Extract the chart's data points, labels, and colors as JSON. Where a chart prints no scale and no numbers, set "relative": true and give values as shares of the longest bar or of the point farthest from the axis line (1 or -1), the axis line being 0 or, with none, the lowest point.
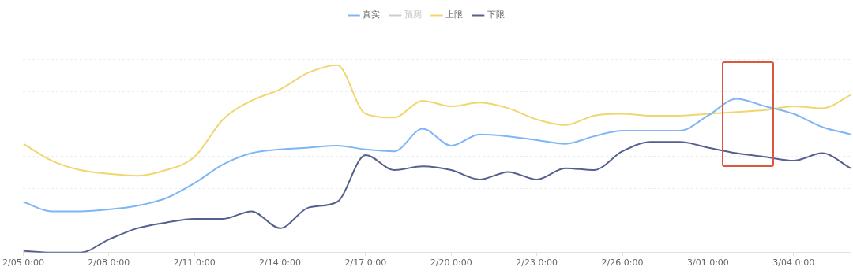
{
  "chart_data": {
    "type": "line",
    "relative": true,
    "legend": "top",
    "grid": "y",
    "marker": "none",
    "line_style": "solid",
    "x": [
      "--02-05",
      "--02-06",
      "--02-07",
      "--02-08",
      "--02-09",
      "--02-10",
      "--02-11",
      "--02-12",
      "--02-13",
      "--02-14",
      "--02-15",
      "--02-16",
      "--02-17",
      "--02-18",
      "--02-19",
      "--02-20",
      "--02-21",
      "--02-22",
      "--02-23",
      "--02-24",
      "--02-25",
      "--02-26",
      "--02-27",
      "--02-28",
      "--03-01",
      "--03-02",
      "--03-03",
      "--03-04",
      "--03-05",
      "--03-06"
    ],
    "xlim": [
      "--02-05",
      "--03-06"
    ],
    "xticks": [
      {
        "value": "--02-05",
        "label": "2/05 0:00"
      },
      {
        "value": "--02-08",
        "label": "2/08 0:00"
      },
      {
        "value": "--02-11",
        "label": "2/11 0:00"
      },
      {
        "value": "--02-14",
        "label": "2/14 0:00"
      },
      {
        "value": "--02-17",
        "label": "2/17 0:00"
      },
      {
        "value": "--02-20",
        "label": "2/20 0:00"
      },
      {
        "value": "--02-23",
        "label": "2/23 0:00"
      },
      {
        "value": "--02-26",
        "label": "2/26 0:00"
      },
      {
        "value": "--03-01",
        "label": "3/01 0:00"
      },
      {
        "value": "--03-04",
        "label": "3/04 0:00"
      }
    ],
    "series": [
      {
        "name": "真实",
        "color": "#7eb6f5",
        "values": [
          0.27,
          0.22,
          0.22,
          0.23,
          0.25,
          0.29,
          0.37,
          0.47,
          0.53,
          0.55,
          0.56,
          0.57,
          0.55,
          0.54,
          0.66,
          0.57,
          0.63,
          0.62,
          0.6,
          0.58,
          0.62,
          0.65,
          0.65,
          0.65,
          0.73,
          0.82,
          0.78,
          0.74,
          0.67,
          0.63
        ]
      },
      {
        "name": "预测",
        "color": "#cccccc",
        "values": [
          null,
          null,
          null,
          null,
          null,
          null,
          null,
          null,
          null,
          null,
          null,
          null,
          null,
          null,
          null,
          null,
          null,
          null,
          null,
          null,
          null,
          null,
          null,
          null,
          null,
          null,
          null,
          null,
          null,
          null
        ]
      },
      {
        "name": "上限",
        "color": "#f0d670",
        "values": [
          0.58,
          0.49,
          0.44,
          0.42,
          0.41,
          0.44,
          0.51,
          0.71,
          0.81,
          0.87,
          0.96,
          1.0,
          0.74,
          0.72,
          0.81,
          0.78,
          0.8,
          0.77,
          0.71,
          0.68,
          0.73,
          0.74,
          0.73,
          0.73,
          0.74,
          0.75,
          0.76,
          0.78,
          0.77,
          0.84
        ]
      },
      {
        "name": "下限",
        "color": "#56608f",
        "values": [
          0.01,
          0,
          0,
          0.07,
          0.13,
          0.16,
          0.18,
          0.18,
          0.22,
          0.13,
          0.24,
          0.27,
          0.52,
          0.44,
          0.46,
          0.44,
          0.39,
          0.43,
          0.39,
          0.45,
          0.44,
          0.54,
          0.59,
          0.59,
          0.56,
          0.53,
          0.51,
          0.49,
          0.53,
          0.45
        ]
      }
    ]
  }
}
